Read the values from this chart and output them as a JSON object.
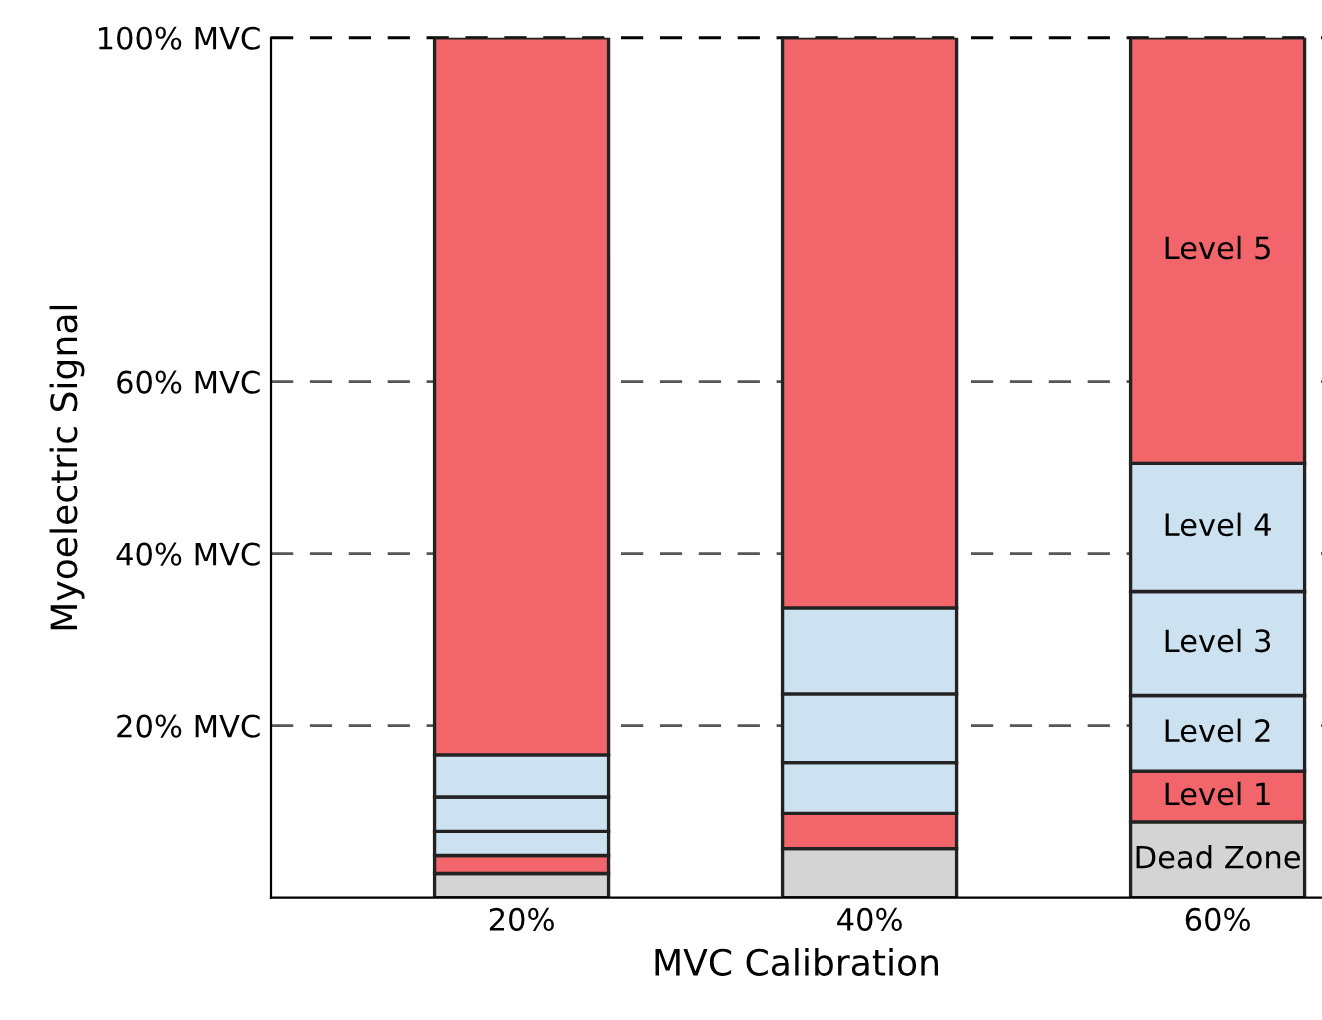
{
  "chart_data": {
    "type": "bar",
    "stacked": true,
    "xlabel": "MVC Calibration",
    "ylabel": "Myoelectric Signal",
    "categories": [
      "20%",
      "40%",
      "60%"
    ],
    "series": [
      {
        "name": "Dead Zone",
        "color": "#d4d4d4",
        "values": [
          2.8,
          5.7,
          8.8
        ]
      },
      {
        "name": "Level 1",
        "color": "#f2666b",
        "values": [
          2.1,
          4.1,
          5.9
        ]
      },
      {
        "name": "Level 2",
        "color": "#cde2f1",
        "values": [
          2.8,
          5.9,
          8.8
        ]
      },
      {
        "name": "Level 3",
        "color": "#cde2f1",
        "values": [
          4.0,
          8.0,
          12.1
        ]
      },
      {
        "name": "Level 4",
        "color": "#cde2f1",
        "values": [
          4.9,
          10.0,
          14.9
        ]
      },
      {
        "name": "Level 5",
        "color": "#f2666b",
        "values": [
          83.4,
          66.3,
          49.5
        ]
      }
    ],
    "ylim": [
      0,
      100
    ],
    "yticks": [
      {
        "value": 20,
        "label": "20% MVC"
      },
      {
        "value": 40,
        "label": "40% MVC"
      },
      {
        "value": 60,
        "label": "60% MVC"
      },
      {
        "value": 100,
        "label": "100% MVC"
      }
    ],
    "ref_lines": [
      {
        "axis": "y",
        "value": 20,
        "line_style": "dashed",
        "color": "#555555"
      },
      {
        "axis": "y",
        "value": 40,
        "line_style": "dashed",
        "color": "#555555"
      },
      {
        "axis": "y",
        "value": 60,
        "line_style": "dashed",
        "color": "#555555"
      },
      {
        "axis": "y",
        "value": 100,
        "line_style": "dashed",
        "color": "#000000"
      }
    ],
    "grid": false,
    "legend": false
  }
}
